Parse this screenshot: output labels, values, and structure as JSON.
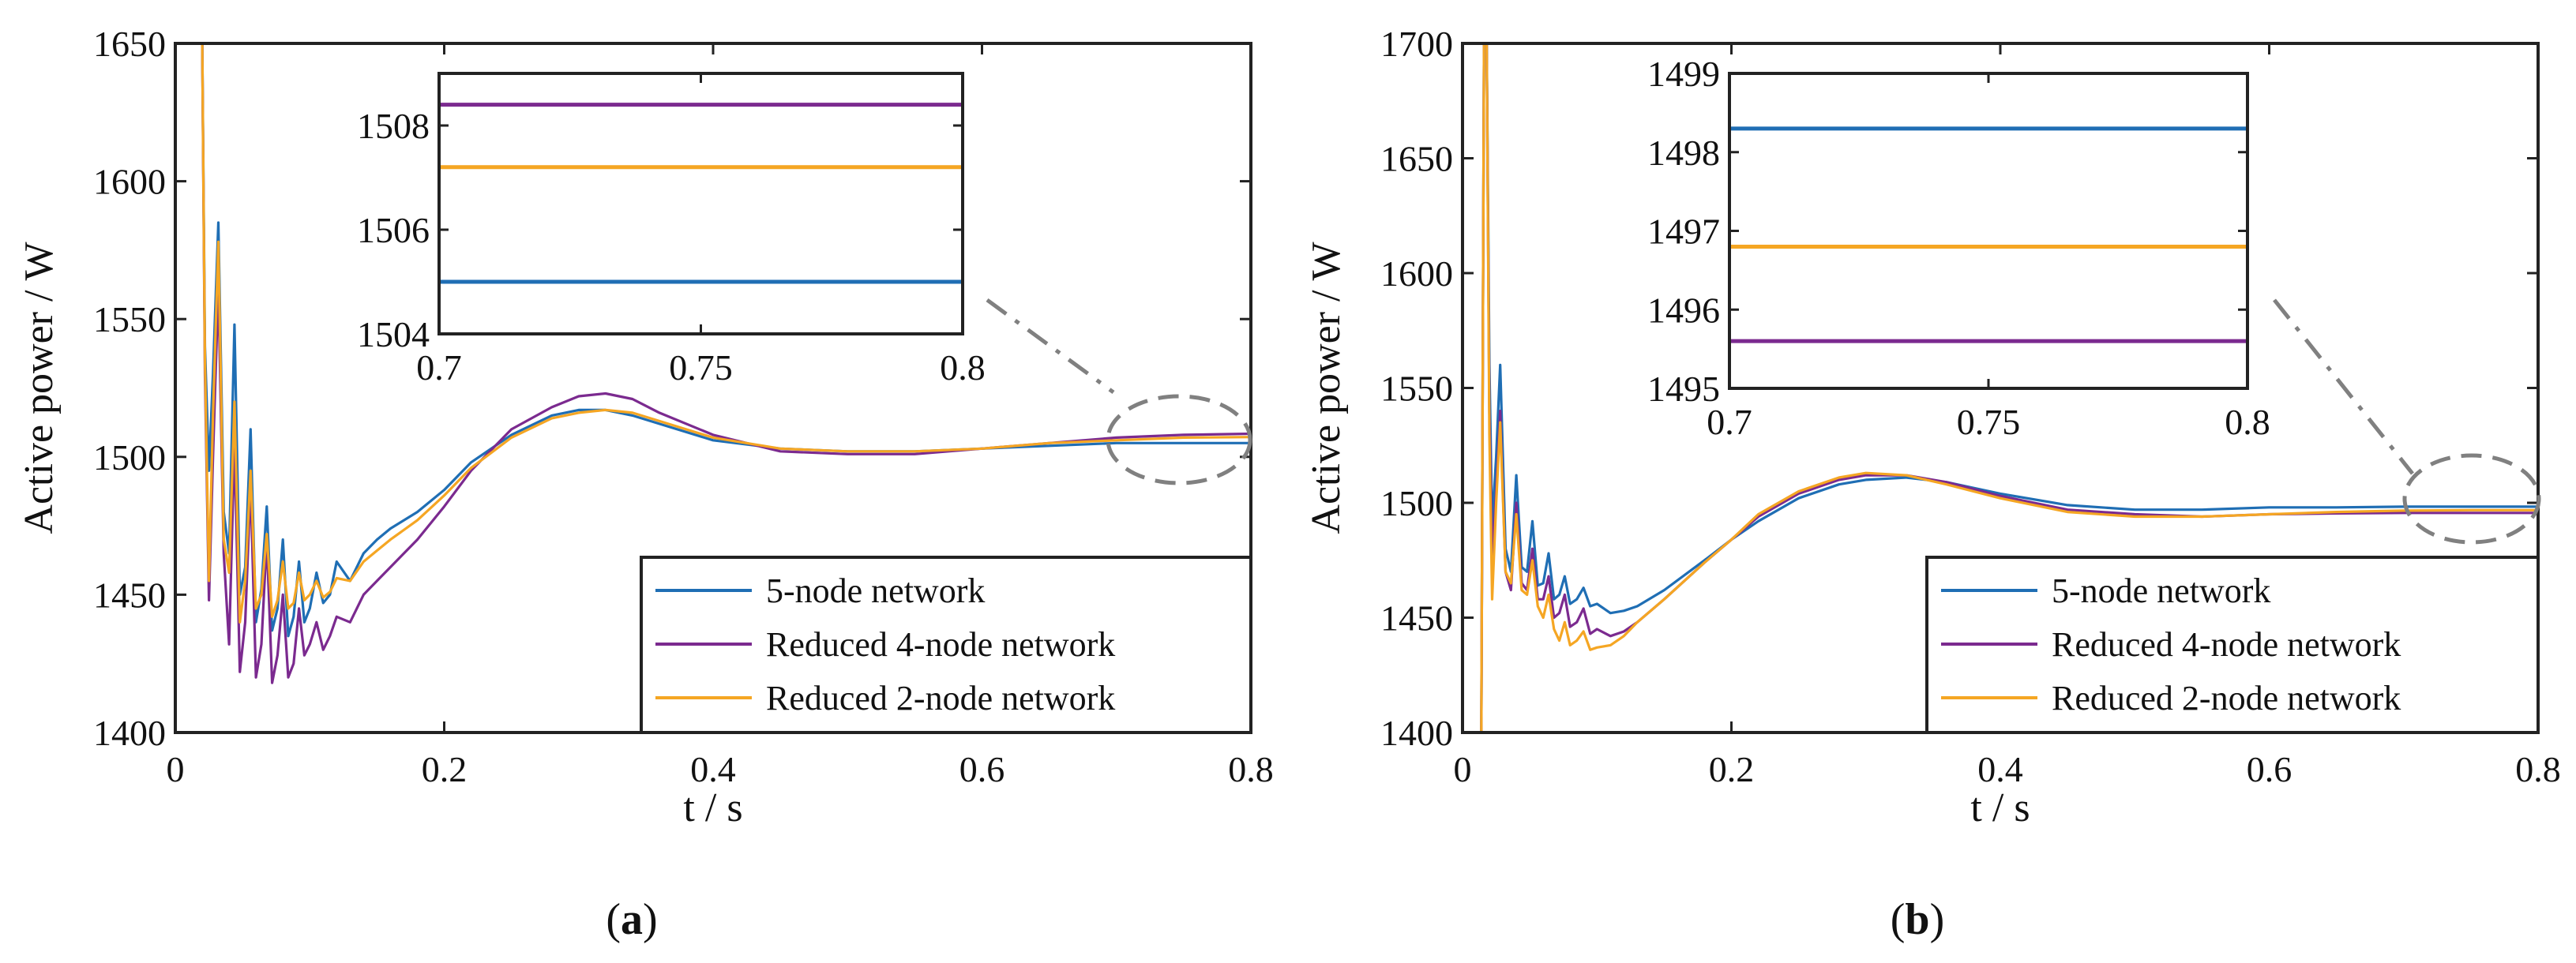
{
  "colors": {
    "series1": "#1f6eb4",
    "series2": "#7b2a8f",
    "series3": "#f5a623",
    "dash": "#808080",
    "axis": "#222222"
  },
  "chart_data": [
    {
      "type": "line",
      "panel_label": "a",
      "title": "",
      "xlabel": "t / s",
      "ylabel": "Active power / W",
      "xlim": [
        0,
        0.8
      ],
      "ylim": [
        1400,
        1650
      ],
      "xticks": [
        0,
        0.2,
        0.4,
        0.6,
        0.8
      ],
      "xtick_labels": [
        "0",
        "0.2",
        "0.4",
        "0.6",
        "0.8"
      ],
      "yticks": [
        1400,
        1450,
        1500,
        1550,
        1600,
        1650
      ],
      "ytick_labels": [
        "1400",
        "1450",
        "1500",
        "1550",
        "1600",
        "1650"
      ],
      "legend_position": "bottom-right",
      "final_values": [
        1505,
        1508.4,
        1507.2
      ],
      "series": [
        {
          "name": "5-node network",
          "x": [
            0.02,
            0.022,
            0.025,
            0.028,
            0.032,
            0.036,
            0.04,
            0.044,
            0.048,
            0.052,
            0.056,
            0.06,
            0.064,
            0.068,
            0.072,
            0.076,
            0.08,
            0.084,
            0.088,
            0.092,
            0.096,
            0.1,
            0.105,
            0.11,
            0.115,
            0.12,
            0.13,
            0.14,
            0.15,
            0.16,
            0.18,
            0.2,
            0.22,
            0.25,
            0.28,
            0.3,
            0.32,
            0.34,
            0.36,
            0.4,
            0.45,
            0.5,
            0.55,
            0.6,
            0.65,
            0.7,
            0.75,
            0.8
          ],
          "y": [
            1650,
            1540,
            1495,
            1530,
            1585,
            1480,
            1465,
            1548,
            1450,
            1460,
            1510,
            1440,
            1452,
            1482,
            1437,
            1445,
            1470,
            1435,
            1442,
            1462,
            1440,
            1445,
            1458,
            1447,
            1450,
            1462,
            1455,
            1465,
            1470,
            1474,
            1480,
            1488,
            1498,
            1508,
            1515,
            1517,
            1517,
            1515,
            1512,
            1506,
            1503,
            1502,
            1502,
            1503,
            1504,
            1505,
            1505,
            1505
          ]
        },
        {
          "name": "Reduced 4-node network",
          "x": [
            0.02,
            0.022,
            0.025,
            0.028,
            0.032,
            0.036,
            0.04,
            0.044,
            0.048,
            0.052,
            0.056,
            0.06,
            0.064,
            0.068,
            0.072,
            0.076,
            0.08,
            0.084,
            0.088,
            0.092,
            0.096,
            0.1,
            0.105,
            0.11,
            0.115,
            0.12,
            0.13,
            0.14,
            0.15,
            0.16,
            0.18,
            0.2,
            0.22,
            0.25,
            0.28,
            0.3,
            0.32,
            0.34,
            0.36,
            0.4,
            0.45,
            0.5,
            0.55,
            0.6,
            0.65,
            0.7,
            0.75,
            0.8
          ],
          "y": [
            1650,
            1530,
            1448,
            1500,
            1562,
            1465,
            1432,
            1505,
            1422,
            1440,
            1490,
            1420,
            1432,
            1470,
            1418,
            1428,
            1450,
            1420,
            1425,
            1445,
            1428,
            1432,
            1440,
            1430,
            1435,
            1442,
            1440,
            1450,
            1455,
            1460,
            1470,
            1482,
            1495,
            1510,
            1518,
            1522,
            1523,
            1521,
            1516,
            1508,
            1502,
            1501,
            1501,
            1503,
            1505,
            1507,
            1508,
            1508.4
          ]
        },
        {
          "name": "Reduced 2-node network",
          "x": [
            0.02,
            0.022,
            0.025,
            0.028,
            0.032,
            0.036,
            0.04,
            0.044,
            0.048,
            0.052,
            0.056,
            0.06,
            0.064,
            0.068,
            0.072,
            0.076,
            0.08,
            0.084,
            0.088,
            0.092,
            0.096,
            0.1,
            0.105,
            0.11,
            0.115,
            0.12,
            0.13,
            0.14,
            0.15,
            0.16,
            0.18,
            0.2,
            0.22,
            0.25,
            0.28,
            0.3,
            0.32,
            0.34,
            0.36,
            0.4,
            0.45,
            0.5,
            0.55,
            0.6,
            0.65,
            0.7,
            0.75,
            0.8
          ],
          "y": [
            1650,
            1535,
            1455,
            1515,
            1578,
            1470,
            1458,
            1520,
            1440,
            1455,
            1495,
            1445,
            1450,
            1472,
            1442,
            1448,
            1462,
            1445,
            1447,
            1458,
            1448,
            1450,
            1455,
            1449,
            1451,
            1456,
            1455,
            1462,
            1466,
            1470,
            1477,
            1486,
            1496,
            1507,
            1514,
            1516,
            1517,
            1516,
            1513,
            1507,
            1503,
            1502,
            1502,
            1503,
            1505,
            1506,
            1507,
            1507.2
          ]
        }
      ],
      "inset": {
        "xlim": [
          0.7,
          0.8
        ],
        "ylim": [
          1504,
          1509
        ],
        "xticks": [
          0.7,
          0.75,
          0.8
        ],
        "xtick_labels": [
          "0.7",
          "0.75",
          "0.8"
        ],
        "yticks": [
          1504,
          1506,
          1508
        ],
        "ytick_labels": [
          "1504",
          "1506",
          "1508"
        ],
        "values": [
          1505,
          1508.4,
          1507.2
        ]
      }
    },
    {
      "type": "line",
      "panel_label": "b",
      "title": "",
      "xlabel": "t / s",
      "ylabel": "Active power / W",
      "xlim": [
        0,
        0.8
      ],
      "ylim": [
        1400,
        1700
      ],
      "xticks": [
        0,
        0.2,
        0.4,
        0.6,
        0.8
      ],
      "xtick_labels": [
        "0",
        "0.2",
        "0.4",
        "0.6",
        "0.8"
      ],
      "yticks": [
        1400,
        1450,
        1500,
        1550,
        1600,
        1650,
        1700
      ],
      "ytick_labels": [
        "1400",
        "1450",
        "1500",
        "1550",
        "1600",
        "1650",
        "1700"
      ],
      "legend_position": "bottom-right",
      "final_values": [
        1498.3,
        1495.6,
        1496.8
      ],
      "series": [
        {
          "name": "5-node network",
          "x": [
            0.014,
            0.016,
            0.018,
            0.02,
            0.022,
            0.025,
            0.028,
            0.032,
            0.036,
            0.04,
            0.044,
            0.048,
            0.052,
            0.056,
            0.06,
            0.064,
            0.068,
            0.072,
            0.076,
            0.08,
            0.085,
            0.09,
            0.095,
            0.1,
            0.11,
            0.12,
            0.13,
            0.15,
            0.18,
            0.2,
            0.22,
            0.25,
            0.28,
            0.3,
            0.33,
            0.36,
            0.4,
            0.45,
            0.5,
            0.55,
            0.6,
            0.65,
            0.7,
            0.75,
            0.8
          ],
          "y": [
            1400,
            1700,
            1700,
            1560,
            1490,
            1520,
            1560,
            1480,
            1470,
            1512,
            1472,
            1470,
            1492,
            1464,
            1465,
            1478,
            1458,
            1460,
            1468,
            1456,
            1458,
            1463,
            1455,
            1456,
            1452,
            1453,
            1455,
            1462,
            1475,
            1484,
            1492,
            1502,
            1508,
            1510,
            1511,
            1509,
            1504,
            1499,
            1497,
            1497,
            1498,
            1498,
            1498.3,
            1498.3,
            1498.3
          ]
        },
        {
          "name": "Reduced 4-node network",
          "x": [
            0.014,
            0.016,
            0.018,
            0.02,
            0.022,
            0.025,
            0.028,
            0.032,
            0.036,
            0.04,
            0.044,
            0.048,
            0.052,
            0.056,
            0.06,
            0.064,
            0.068,
            0.072,
            0.076,
            0.08,
            0.085,
            0.09,
            0.095,
            0.1,
            0.11,
            0.12,
            0.13,
            0.15,
            0.18,
            0.2,
            0.22,
            0.25,
            0.28,
            0.3,
            0.33,
            0.36,
            0.4,
            0.45,
            0.5,
            0.55,
            0.6,
            0.65,
            0.7,
            0.75,
            0.8
          ],
          "y": [
            1400,
            1700,
            1700,
            1540,
            1475,
            1505,
            1540,
            1470,
            1462,
            1500,
            1465,
            1462,
            1480,
            1458,
            1458,
            1468,
            1450,
            1452,
            1460,
            1446,
            1448,
            1454,
            1443,
            1445,
            1442,
            1444,
            1448,
            1458,
            1474,
            1484,
            1494,
            1504,
            1510,
            1512,
            1512,
            1509,
            1503,
            1497,
            1495,
            1494,
            1495,
            1495.4,
            1495.6,
            1495.6,
            1495.6
          ]
        },
        {
          "name": "Reduced 2-node network",
          "x": [
            0.014,
            0.016,
            0.018,
            0.02,
            0.022,
            0.025,
            0.028,
            0.032,
            0.036,
            0.04,
            0.044,
            0.048,
            0.052,
            0.056,
            0.06,
            0.064,
            0.068,
            0.072,
            0.076,
            0.08,
            0.085,
            0.09,
            0.095,
            0.1,
            0.11,
            0.12,
            0.13,
            0.15,
            0.18,
            0.2,
            0.22,
            0.25,
            0.28,
            0.3,
            0.33,
            0.36,
            0.4,
            0.45,
            0.5,
            0.55,
            0.6,
            0.65,
            0.7,
            0.75,
            0.8
          ],
          "y": [
            1400,
            1700,
            1700,
            1530,
            1458,
            1500,
            1535,
            1470,
            1465,
            1495,
            1462,
            1460,
            1475,
            1455,
            1450,
            1460,
            1445,
            1440,
            1448,
            1438,
            1440,
            1444,
            1436,
            1437,
            1438,
            1442,
            1448,
            1458,
            1474,
            1484,
            1495,
            1505,
            1511,
            1513,
            1512,
            1508,
            1502,
            1496,
            1494,
            1494,
            1495,
            1496,
            1496.6,
            1496.8,
            1496.8
          ]
        }
      ],
      "inset": {
        "xlim": [
          0.7,
          0.8
        ],
        "ylim": [
          1495,
          1499
        ],
        "xticks": [
          0.7,
          0.75,
          0.8
        ],
        "xtick_labels": [
          "0.7",
          "0.75",
          "0.8"
        ],
        "yticks": [
          1495,
          1496,
          1497,
          1498,
          1499
        ],
        "ytick_labels": [
          "1495",
          "1496",
          "1497",
          "1498",
          "1499"
        ],
        "values": [
          1498.3,
          1495.6,
          1496.8
        ]
      }
    }
  ]
}
